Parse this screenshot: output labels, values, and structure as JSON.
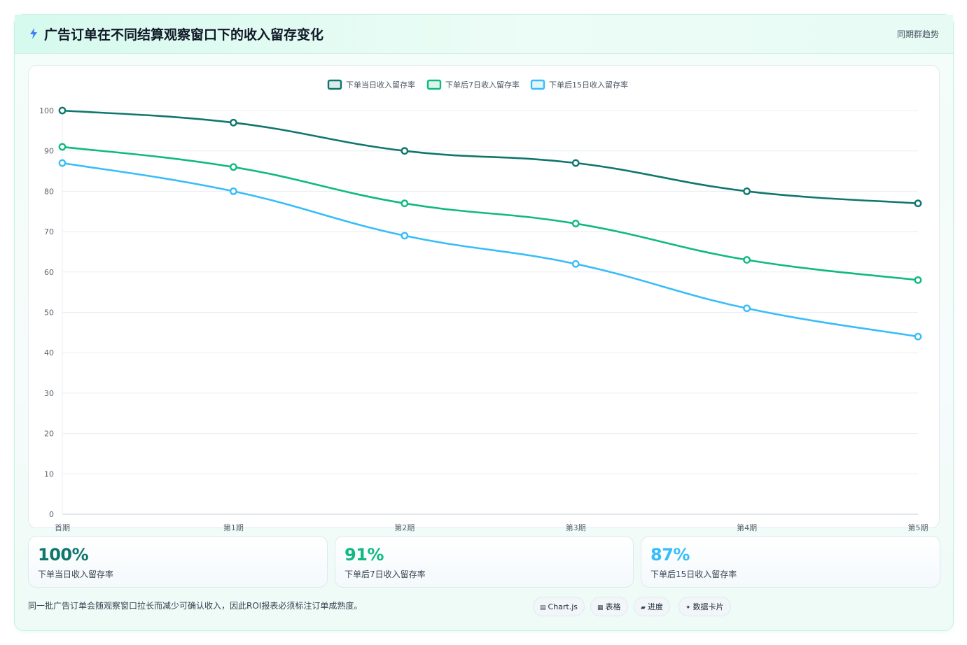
{
  "header": {
    "title": "广告订单在不同结算观察窗口下的收入留存变化",
    "tag": "同期群趋势",
    "icon": "lightning-icon"
  },
  "chart_data": {
    "type": "line",
    "title": "广告订单在不同结算观察窗口下的收入留存变化",
    "xlabel": "",
    "ylabel": "",
    "categories": [
      "首期",
      "第1期",
      "第2期",
      "第3期",
      "第4期",
      "第5期"
    ],
    "ylim": [
      0,
      100
    ],
    "yticks": [
      0,
      10,
      20,
      30,
      40,
      50,
      60,
      70,
      80,
      90,
      100
    ],
    "grid": true,
    "legend_position": "top",
    "series": [
      {
        "name": "下单当日收入留存率",
        "color": "#0f766e",
        "values": [
          100,
          97,
          90,
          87,
          80,
          77
        ]
      },
      {
        "name": "下单后7日收入留存率",
        "color": "#10b981",
        "values": [
          91,
          86,
          77,
          72,
          63,
          58
        ]
      },
      {
        "name": "下单后15日收入留存率",
        "color": "#38bdf8",
        "values": [
          87,
          80,
          69,
          62,
          51,
          44
        ]
      }
    ]
  },
  "stats": [
    {
      "value": "100%",
      "label": "下单当日收入留存率",
      "color": "#0f766e"
    },
    {
      "value": "91%",
      "label": "下单后7日收入留存率",
      "color": "#10b981"
    },
    {
      "value": "87%",
      "label": "下单后15日收入留存率",
      "color": "#38bdf8"
    }
  ],
  "footnote": "同一批广告订单会随观察窗口拉长而减少可确认收入，因此ROI报表必须标注订单成熟度。",
  "chips": [
    {
      "icon": "▤",
      "label": "Chart.js"
    },
    {
      "icon": "▦",
      "label": "表格"
    },
    {
      "icon": "▰",
      "label": "进度"
    },
    {
      "icon": "✦",
      "label": "数据卡片"
    }
  ]
}
